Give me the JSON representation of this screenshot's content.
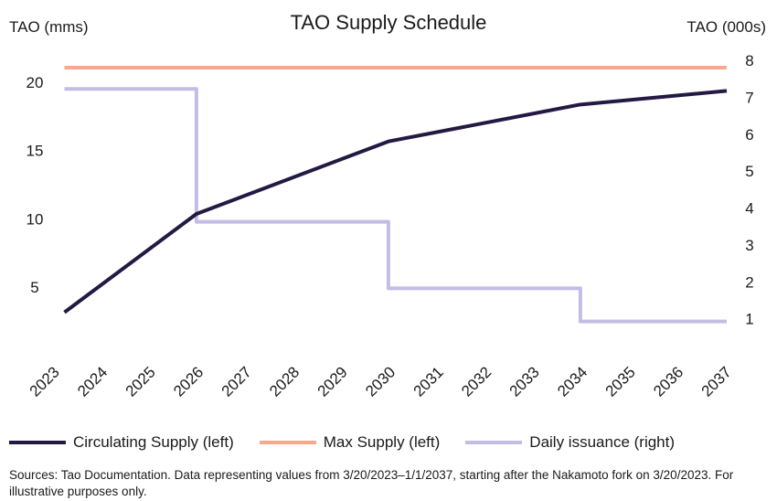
{
  "chart_data": {
    "type": "line",
    "title": "TAO Supply Schedule",
    "ylabel_left": "TAO (mms)",
    "ylabel_right": "TAO (000s)",
    "xlim": [
      2023,
      2037
    ],
    "ylim_left": [
      0,
      21.6
    ],
    "ylim_right": [
      0,
      8
    ],
    "x_ticks": [
      "2023",
      "2024",
      "2025",
      "2026",
      "2027",
      "2028",
      "2029",
      "2030",
      "2031",
      "2032",
      "2033",
      "2034",
      "2035",
      "2036",
      "2037"
    ],
    "y_ticks_left": [
      "5",
      "10",
      "15",
      "20"
    ],
    "y_ticks_right": [
      "1",
      "2",
      "3",
      "4",
      "5",
      "6",
      "7",
      "8"
    ],
    "grid": false,
    "legend_position": "bottom",
    "series": [
      {
        "name": "Circulating Supply (left)",
        "axis": "left",
        "color": "#231942",
        "step": false,
        "x": [
          2023.2,
          2025.95,
          2029.95,
          2033.95,
          2037
        ],
        "y": [
          3.1,
          10.3,
          15.6,
          18.3,
          19.3
        ]
      },
      {
        "name": "Max Supply (left)",
        "axis": "left",
        "color": "#f9a88e",
        "step": false,
        "x": [
          2023.2,
          2037
        ],
        "y": [
          21,
          21
        ]
      },
      {
        "name": "Daily issuance (right)",
        "axis": "right",
        "color": "#c3bde3",
        "step": true,
        "x": [
          2023.2,
          2025.95,
          2029.95,
          2033.95,
          2037
        ],
        "y": [
          7.2,
          3.6,
          1.8,
          0.9,
          0.9
        ]
      }
    ],
    "source": "Sources: Tao Documentation. Data representing values from 3/20/2023–1/1/2037, starting after the Nakamoto fork on 3/20/2023. For illustrative purposes only."
  }
}
